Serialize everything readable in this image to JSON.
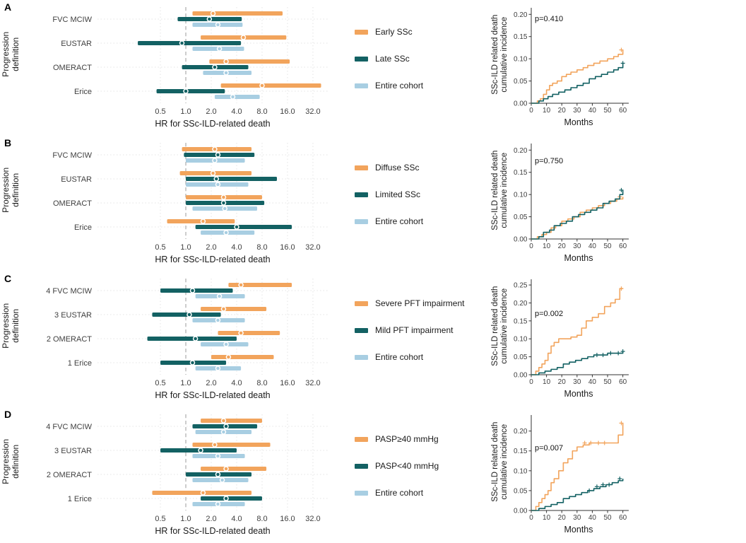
{
  "colors": {
    "orange": "#F2A45C",
    "teal": "#136163",
    "lightblue": "#A8CEE2",
    "grid": "#E4E4E4",
    "ref_line": "#9A9A9A",
    "tick_text": "#404040",
    "axis_line": "#333333"
  },
  "axis": {
    "forest_ylabel": "Progression\ndefinition",
    "cuminc_ylabel": "SSc-ILD related death\ncumulative incidence"
  },
  "chart_data": [
    {
      "panel": "A",
      "legend": [
        {
          "label": "Early SSc",
          "color_key": "orange"
        },
        {
          "label": "Late SSc",
          "color_key": "teal"
        },
        {
          "label": "Entire cohort",
          "color_key": "lightblue"
        }
      ],
      "forest": {
        "type": "forest-hr",
        "xscale": "log2",
        "xlabel": "HR for SSc-ILD-related death",
        "xticks": [
          0.5,
          1,
          2,
          4,
          8,
          16,
          32
        ],
        "ref_line": 1,
        "categories": [
          "FVC MCIW",
          "EUSTAR",
          "OMERACT",
          "Erice"
        ],
        "series": [
          {
            "name": "Early SSc",
            "color_key": "orange",
            "bars": [
              [
                1.2,
                2.1,
                14
              ],
              [
                1.5,
                4.8,
                15.5
              ],
              [
                1.9,
                3,
                17
              ],
              [
                2.6,
                8,
                40
              ]
            ]
          },
          {
            "name": "Late SSc",
            "color_key": "teal",
            "bars": [
              [
                0.8,
                1.9,
                4.6
              ],
              [
                0.27,
                0.9,
                4.5
              ],
              [
                0.9,
                2.2,
                5.5
              ],
              [
                0.45,
                1,
                2.9
              ]
            ]
          },
          {
            "name": "Entire cohort",
            "color_key": "lightblue",
            "bars": [
              [
                1.2,
                2.4,
                4.7
              ],
              [
                1.2,
                2.5,
                4.9
              ],
              [
                1.6,
                3,
                6
              ],
              [
                2.2,
                3.6,
                7.5
              ]
            ]
          }
        ]
      },
      "cuminc": {
        "type": "line",
        "p_value": "p=0.410",
        "p_dy": 16,
        "xlabel": "Months",
        "xticks": [
          0,
          10,
          20,
          30,
          40,
          50,
          60
        ],
        "ylim": [
          0,
          0.21
        ],
        "yticks": [
          0,
          0.05,
          0.1,
          0.15,
          0.2
        ],
        "series": [
          {
            "name": "Early SSc",
            "color_key": "orange",
            "x": [
              0,
              4,
              6,
              8,
              10,
              12,
              14,
              17,
              20,
              23,
              26,
              30,
              34,
              37,
              41,
              45,
              50,
              54,
              57,
              60
            ],
            "y": [
              0,
              0.005,
              0.01,
              0.02,
              0.03,
              0.04,
              0.045,
              0.05,
              0.06,
              0.065,
              0.07,
              0.075,
              0.08,
              0.085,
              0.09,
              0.095,
              0.1,
              0.105,
              0.11,
              0.12
            ],
            "censor": [
              [
                59,
                0.12
              ]
            ]
          },
          {
            "name": "Late SSc",
            "color_key": "teal",
            "x": [
              0,
              5,
              8,
              11,
              14,
              18,
              22,
              26,
              30,
              34,
              38,
              42,
              46,
              50,
              54,
              57,
              60
            ],
            "y": [
              0,
              0.005,
              0.01,
              0.015,
              0.02,
              0.025,
              0.03,
              0.035,
              0.04,
              0.045,
              0.055,
              0.06,
              0.065,
              0.07,
              0.075,
              0.08,
              0.09
            ],
            "censor": [
              [
                60,
                0.09
              ]
            ]
          }
        ]
      }
    },
    {
      "panel": "B",
      "legend": [
        {
          "label": "Diffuse SSc",
          "color_key": "orange"
        },
        {
          "label": "Limited SSc",
          "color_key": "teal"
        },
        {
          "label": "Entire cohort",
          "color_key": "lightblue"
        }
      ],
      "forest": {
        "type": "forest-hr",
        "xscale": "log2",
        "xlabel": "HR for SSc-ILD-related death",
        "xticks": [
          0.5,
          1,
          2,
          4,
          8,
          16,
          32
        ],
        "ref_line": 1,
        "categories": [
          "FVC MCIW",
          "EUSTAR",
          "OMERACT",
          "Erice"
        ],
        "series": [
          {
            "name": "Diffuse SSc",
            "color_key": "orange",
            "bars": [
              [
                0.9,
                2.2,
                6
              ],
              [
                0.85,
                2.1,
                6
              ],
              [
                1,
                2.8,
                8
              ],
              [
                0.6,
                1.6,
                3.8
              ]
            ]
          },
          {
            "name": "Limited SSc",
            "color_key": "teal",
            "bars": [
              [
                0.95,
                2.4,
                6.5
              ],
              [
                1,
                2.3,
                12
              ],
              [
                1,
                2.8,
                8.5
              ],
              [
                1.3,
                4,
                18
              ]
            ]
          },
          {
            "name": "Entire cohort",
            "color_key": "lightblue",
            "bars": [
              [
                1,
                2.2,
                5
              ],
              [
                1,
                2.4,
                5.5
              ],
              [
                1.2,
                2.9,
                7
              ],
              [
                1.5,
                3,
                6.5
              ]
            ]
          }
        ]
      },
      "cuminc": {
        "type": "line",
        "p_value": "p=0.750",
        "p_dy": 25,
        "xlabel": "Months",
        "xticks": [
          0,
          10,
          20,
          30,
          40,
          50,
          60
        ],
        "ylim": [
          0,
          0.21
        ],
        "yticks": [
          0,
          0.05,
          0.1,
          0.15,
          0.2
        ],
        "series": [
          {
            "name": "Diffuse SSc",
            "color_key": "orange",
            "x": [
              0,
              4,
              7,
              10,
              13,
              16,
              20,
              24,
              28,
              32,
              36,
              40,
              44,
              48,
              52,
              56,
              60
            ],
            "y": [
              0,
              0.005,
              0.01,
              0.015,
              0.025,
              0.03,
              0.04,
              0.045,
              0.05,
              0.06,
              0.065,
              0.07,
              0.075,
              0.08,
              0.085,
              0.09,
              0.095
            ],
            "censor": [
              [
                58,
                0.095
              ]
            ]
          },
          {
            "name": "Limited SSc",
            "color_key": "teal",
            "x": [
              0,
              5,
              8,
              12,
              15,
              19,
              23,
              27,
              31,
              35,
              39,
              43,
              47,
              51,
              55,
              58,
              60
            ],
            "y": [
              0,
              0.005,
              0.015,
              0.02,
              0.03,
              0.035,
              0.04,
              0.05,
              0.055,
              0.06,
              0.065,
              0.07,
              0.08,
              0.085,
              0.09,
              0.1,
              0.11
            ],
            "censor": [
              [
                59,
                0.11
              ]
            ]
          }
        ]
      }
    },
    {
      "panel": "C",
      "legend": [
        {
          "label": "Severe PFT impairment",
          "color_key": "orange"
        },
        {
          "label": "Mild PFT impairment",
          "color_key": "teal"
        },
        {
          "label": "Entire cohort",
          "color_key": "lightblue"
        }
      ],
      "forest": {
        "type": "forest-hr",
        "xscale": "log2",
        "xlabel": "HR for SSc-ILD-related death",
        "xticks": [
          0.5,
          1,
          2,
          4,
          8,
          16,
          32
        ],
        "ref_line": 1,
        "categories": [
          "4 FVC MCIW",
          "3 EUSTAR",
          "2 OMERACT",
          "1 Erice"
        ],
        "series": [
          {
            "name": "Severe PFT impairment",
            "color_key": "orange",
            "bars": [
              [
                3.2,
                4.5,
                18
              ],
              [
                1.5,
                2.8,
                9
              ],
              [
                2.4,
                4.5,
                13
              ],
              [
                2,
                3.2,
                11
              ]
            ]
          },
          {
            "name": "Mild PFT impairment",
            "color_key": "teal",
            "bars": [
              [
                0.5,
                1.2,
                3.6
              ],
              [
                0.4,
                1.1,
                2.6
              ],
              [
                0.35,
                1.3,
                4
              ],
              [
                0.5,
                1.2,
                3
              ]
            ]
          },
          {
            "name": "Entire cohort",
            "color_key": "lightblue",
            "bars": [
              [
                1.3,
                2.5,
                5
              ],
              [
                1.2,
                2.4,
                5
              ],
              [
                1.5,
                3,
                5.5
              ],
              [
                1.3,
                2.4,
                4.5
              ]
            ]
          }
        ]
      },
      "cuminc": {
        "type": "line",
        "p_value": "p=0.002",
        "p_dy": 49,
        "xlabel": "Months",
        "xticks": [
          0,
          10,
          20,
          30,
          40,
          50,
          60
        ],
        "ylim": [
          0,
          0.26
        ],
        "yticks": [
          0,
          0.05,
          0.1,
          0.15,
          0.2,
          0.25
        ],
        "series": [
          {
            "name": "Severe PFT impairment",
            "color_key": "orange",
            "x": [
              0,
              3,
              5,
              7,
              9,
              11,
              13,
              15,
              18,
              22,
              26,
              30,
              33,
              36,
              40,
              44,
              48,
              52,
              55,
              58,
              60
            ],
            "y": [
              0,
              0.01,
              0.02,
              0.03,
              0.04,
              0.06,
              0.08,
              0.09,
              0.1,
              0.1,
              0.105,
              0.11,
              0.13,
              0.15,
              0.16,
              0.17,
              0.19,
              0.2,
              0.21,
              0.24,
              0.24
            ],
            "censor": [
              [
                59,
                0.24
              ]
            ]
          },
          {
            "name": "Mild PFT impairment",
            "color_key": "teal",
            "x": [
              0,
              5,
              9,
              13,
              17,
              21,
              25,
              29,
              33,
              37,
              41,
              45,
              50,
              55,
              60
            ],
            "y": [
              0,
              0.005,
              0.01,
              0.015,
              0.02,
              0.03,
              0.035,
              0.04,
              0.045,
              0.05,
              0.055,
              0.055,
              0.06,
              0.06,
              0.065
            ],
            "censor": [
              [
                43,
                0.055
              ],
              [
                47,
                0.055
              ],
              [
                52,
                0.06
              ],
              [
                57,
                0.06
              ],
              [
                60,
                0.065
              ]
            ]
          }
        ]
      }
    },
    {
      "panel": "D",
      "legend": [
        {
          "label": "PASP≥40 mmHg",
          "color_key": "orange"
        },
        {
          "label": "PASP<40 mmHg",
          "color_key": "teal"
        },
        {
          "label": "Entire cohort",
          "color_key": "lightblue"
        }
      ],
      "forest": {
        "type": "forest-hr",
        "xscale": "log2",
        "xlabel": "HR for SSc-ILD-related death",
        "xticks": [
          0.5,
          1,
          2,
          4,
          8,
          16,
          32
        ],
        "ref_line": 1,
        "categories": [
          "4 FVC MCIW",
          "3 EUSTAR",
          "2 OMERACT",
          "1 Erice"
        ],
        "series": [
          {
            "name": "PASP≥40 mmHg",
            "color_key": "orange",
            "bars": [
              [
                1.5,
                2.8,
                8
              ],
              [
                1.2,
                2.2,
                10
              ],
              [
                1.5,
                3,
                9
              ],
              [
                0.4,
                1.6,
                6
              ]
            ]
          },
          {
            "name": "PASP<40 mmHg",
            "color_key": "teal",
            "bars": [
              [
                1.2,
                3,
                7
              ],
              [
                0.5,
                1.5,
                4
              ],
              [
                1,
                2.4,
                6
              ],
              [
                1.5,
                3,
                8
              ]
            ]
          },
          {
            "name": "Entire cohort",
            "color_key": "lightblue",
            "bars": [
              [
                1.3,
                2.8,
                6
              ],
              [
                1.2,
                2.4,
                5
              ],
              [
                1.2,
                2.7,
                5.5
              ],
              [
                1.2,
                2.4,
                5
              ]
            ]
          }
        ]
      },
      "cuminc": {
        "type": "line",
        "p_value": "p=0.007",
        "p_dy": 47,
        "xlabel": "Months",
        "xticks": [
          0,
          10,
          20,
          30,
          40,
          50,
          60
        ],
        "ylim": [
          0,
          0.235
        ],
        "yticks": [
          0,
          0.05,
          0.1,
          0.15,
          0.2
        ],
        "series": [
          {
            "name": "PASP≥40 mmHg",
            "color_key": "orange",
            "x": [
              0,
              3,
              5,
              7,
              9,
              11,
              13,
              15,
              18,
              21,
              24,
              27,
              30,
              34,
              38,
              42,
              46,
              50,
              54,
              57,
              60
            ],
            "y": [
              0,
              0.01,
              0.02,
              0.03,
              0.04,
              0.05,
              0.07,
              0.08,
              0.1,
              0.12,
              0.13,
              0.15,
              0.16,
              0.165,
              0.17,
              0.17,
              0.17,
              0.17,
              0.17,
              0.19,
              0.22
            ],
            "censor": [
              [
                35,
                0.17
              ],
              [
                39,
                0.17
              ],
              [
                44,
                0.17
              ],
              [
                48,
                0.17
              ],
              [
                59,
                0.22
              ]
            ]
          },
          {
            "name": "PASP<40 mmHg",
            "color_key": "teal",
            "x": [
              0,
              5,
              9,
              13,
              17,
              21,
              25,
              29,
              33,
              37,
              41,
              45,
              49,
              53,
              57,
              60
            ],
            "y": [
              0,
              0.005,
              0.01,
              0.015,
              0.02,
              0.03,
              0.035,
              0.04,
              0.045,
              0.05,
              0.055,
              0.06,
              0.065,
              0.07,
              0.075,
              0.08
            ],
            "censor": [
              [
                38,
                0.05
              ],
              [
                43,
                0.06
              ],
              [
                47,
                0.065
              ],
              [
                51,
                0.065
              ],
              [
                58,
                0.08
              ]
            ]
          }
        ]
      }
    }
  ]
}
